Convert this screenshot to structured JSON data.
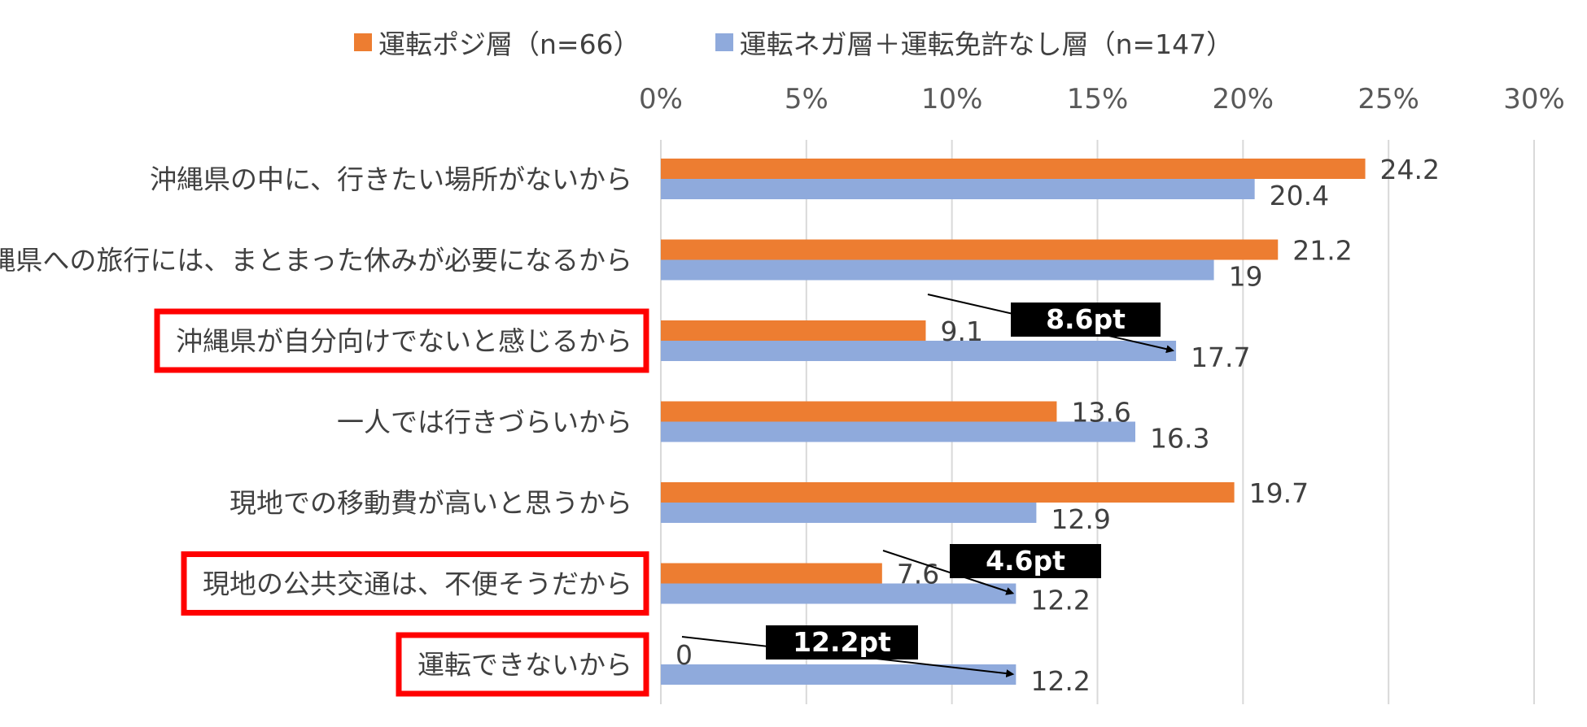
{
  "chart_data": {
    "type": "bar",
    "orientation": "horizontal",
    "xlim": [
      0,
      30
    ],
    "ticks": [
      "0%",
      "5%",
      "10%",
      "15%",
      "20%",
      "25%",
      "30%"
    ],
    "tick_values": [
      0,
      5,
      10,
      15,
      20,
      25,
      30
    ],
    "grid": true,
    "legend_position": "top",
    "categories": [
      "沖縄県の中に、行きたい場所がないから",
      "沖縄県への旅行には、まとまった休みが必要になるから",
      "沖縄県が自分向けでないと感じるから",
      "一人では行きづらいから",
      "現地での移動費が高いと思うから",
      "現地の公共交通は、不便そうだから",
      "運転できないから"
    ],
    "highlighted": [
      false,
      false,
      true,
      false,
      false,
      true,
      true
    ],
    "series": [
      {
        "name": "運転ポジ層（n=66）",
        "color": "#ED7D31",
        "values": [
          24.2,
          21.2,
          9.1,
          13.6,
          19.7,
          7.6,
          0
        ],
        "labels": [
          "24.2",
          "21.2",
          "9.1",
          "13.6",
          "19.7",
          "7.6",
          "0"
        ]
      },
      {
        "name": "運転ネガ層＋運転免許なし層（n=147）",
        "color": "#8FAADC",
        "values": [
          20.4,
          19,
          17.7,
          16.3,
          12.9,
          12.2,
          12.2
        ],
        "labels": [
          "20.4",
          "19",
          "17.7",
          "16.3",
          "12.9",
          "12.2",
          "12.2"
        ]
      }
    ],
    "annotations": [
      {
        "category_index": 2,
        "text": "8.6pt"
      },
      {
        "category_index": 5,
        "text": "4.6pt"
      },
      {
        "category_index": 6,
        "text": "12.2pt"
      }
    ],
    "colors": {
      "highlight_box": "#FF0000",
      "callout_bg": "#000000",
      "grid": "#D9D9D9"
    }
  }
}
